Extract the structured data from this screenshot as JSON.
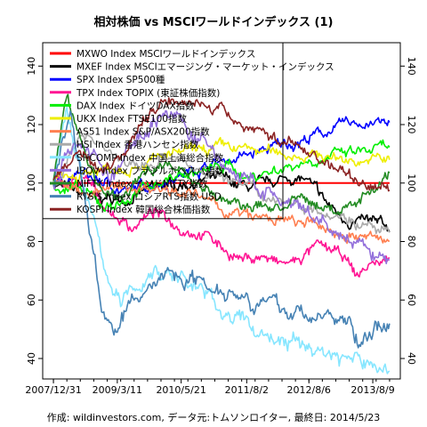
{
  "chart_data": {
    "type": "line",
    "title": "相対株価 vs MSCIワールドインデックス (1)",
    "footer": "作成: wildinvestors.com, データ元:トムソンロイター, 最終日: 2014/5/23",
    "x_tick_labels": [
      "2007/12/31",
      "2009/3/11",
      "2010/5/21",
      "2011/8/2",
      "2012/8/6",
      "2013/8/9"
    ],
    "x_range": [
      "2007/12/31",
      "2014/5/23"
    ],
    "ylim": [
      33,
      148
    ],
    "y_ticks": [
      40,
      60,
      80,
      100,
      120,
      140
    ],
    "y_tick_labels": [
      "40",
      "60",
      "80",
      "100",
      "120",
      "140"
    ],
    "legend_position": "top-left",
    "grid": false,
    "series": [
      {
        "name": "MXWO Index MSCIワールドインデックス",
        "color": "#ff0000",
        "start": 100,
        "points": [
          [
            0.78,
            100
          ],
          [
            1.0,
            100
          ]
        ]
      },
      {
        "name": "MXEF Index MSCIエマージング・マーケット・インデックス",
        "color": "#000000",
        "start": 100,
        "points": [
          [
            0.1,
            95
          ],
          [
            0.2,
            94
          ],
          [
            0.25,
            96
          ],
          [
            0.3,
            98
          ],
          [
            0.35,
            99
          ],
          [
            0.4,
            100
          ],
          [
            0.45,
            101
          ],
          [
            0.5,
            101
          ],
          [
            0.55,
            99
          ],
          [
            0.6,
            98
          ],
          [
            0.65,
            100
          ],
          [
            0.7,
            102
          ],
          [
            0.75,
            101
          ],
          [
            0.78,
            97
          ],
          [
            0.82,
            92
          ],
          [
            0.86,
            88
          ],
          [
            0.9,
            87
          ],
          [
            0.95,
            86
          ],
          [
            1.0,
            84
          ]
        ]
      },
      {
        "name": "SPX Index SP500種",
        "color": "#0000ff",
        "start": 100,
        "points": [
          [
            0.08,
            103
          ],
          [
            0.15,
            100
          ],
          [
            0.22,
            97
          ],
          [
            0.3,
            100
          ],
          [
            0.38,
            103
          ],
          [
            0.45,
            106
          ],
          [
            0.52,
            108
          ],
          [
            0.6,
            110
          ],
          [
            0.68,
            113
          ],
          [
            0.75,
            115
          ],
          [
            0.82,
            118
          ],
          [
            0.88,
            120
          ],
          [
            0.94,
            121
          ],
          [
            1.0,
            120
          ]
        ]
      },
      {
        "name": "TPX Index TOPIX (東証株価指数)",
        "color": "#ff1493",
        "start": 100,
        "points": [
          [
            0.1,
            100
          ],
          [
            0.17,
            90
          ],
          [
            0.23,
            85
          ],
          [
            0.3,
            90
          ],
          [
            0.38,
            85
          ],
          [
            0.45,
            83
          ],
          [
            0.5,
            78
          ],
          [
            0.56,
            74
          ],
          [
            0.62,
            75
          ],
          [
            0.67,
            72
          ],
          [
            0.72,
            73
          ],
          [
            0.78,
            78
          ],
          [
            0.82,
            77
          ],
          [
            0.87,
            74
          ],
          [
            0.9,
            68
          ],
          [
            0.94,
            72
          ],
          [
            1.0,
            74
          ]
        ]
      },
      {
        "name": "DAX Index ドイツDAX指数",
        "color": "#00ee00",
        "start": 100,
        "points": [
          [
            0.08,
            97
          ],
          [
            0.15,
            92
          ],
          [
            0.22,
            94
          ],
          [
            0.3,
            100
          ],
          [
            0.38,
            103
          ],
          [
            0.45,
            104
          ],
          [
            0.52,
            106
          ],
          [
            0.58,
            102
          ],
          [
            0.64,
            104
          ],
          [
            0.7,
            106
          ],
          [
            0.76,
            108
          ],
          [
            0.82,
            109
          ],
          [
            0.88,
            110
          ],
          [
            0.94,
            111
          ],
          [
            1.0,
            112
          ]
        ]
      },
      {
        "name": "UKX Index FTSE100指数",
        "color": "#eeee00",
        "start": 100,
        "points": [
          [
            0.1,
            104
          ],
          [
            0.2,
            106
          ],
          [
            0.3,
            108
          ],
          [
            0.38,
            110
          ],
          [
            0.45,
            111
          ],
          [
            0.52,
            112
          ],
          [
            0.6,
            111
          ],
          [
            0.68,
            110
          ],
          [
            0.75,
            110
          ],
          [
            0.82,
            109
          ],
          [
            0.88,
            108
          ],
          [
            0.94,
            108
          ],
          [
            1.0,
            108
          ]
        ]
      },
      {
        "name": "AS51 Index S&P/ASX200指数",
        "color": "#ff7f50",
        "start": 100,
        "points": [
          [
            0.1,
            97
          ],
          [
            0.2,
            98
          ],
          [
            0.3,
            99
          ],
          [
            0.38,
            98
          ],
          [
            0.45,
            94
          ],
          [
            0.52,
            90
          ],
          [
            0.6,
            88
          ],
          [
            0.68,
            87
          ],
          [
            0.75,
            86
          ],
          [
            0.82,
            84
          ],
          [
            0.88,
            82
          ],
          [
            0.94,
            81
          ],
          [
            1.0,
            80
          ]
        ]
      },
      {
        "name": "HSI Index 香港ハンセン指数",
        "color": "#aaaaaa",
        "start": 100,
        "points": [
          [
            0.1,
            118
          ],
          [
            0.18,
            110
          ],
          [
            0.25,
            104
          ],
          [
            0.32,
            108
          ],
          [
            0.4,
            106
          ],
          [
            0.48,
            104
          ],
          [
            0.55,
            100
          ],
          [
            0.62,
            96
          ],
          [
            0.7,
            94
          ],
          [
            0.78,
            92
          ],
          [
            0.85,
            90
          ],
          [
            0.92,
            86
          ],
          [
            1.0,
            82
          ]
        ]
      },
      {
        "name": "SHCOMP Index 中国上海総合指数",
        "color": "#87e6ff",
        "start": 100,
        "points": [
          [
            0.04,
            125
          ],
          [
            0.1,
            95
          ],
          [
            0.15,
            72
          ],
          [
            0.2,
            58
          ],
          [
            0.25,
            65
          ],
          [
            0.3,
            70
          ],
          [
            0.38,
            68
          ],
          [
            0.45,
            62
          ],
          [
            0.52,
            55
          ],
          [
            0.6,
            50
          ],
          [
            0.68,
            46
          ],
          [
            0.75,
            44
          ],
          [
            0.82,
            42
          ],
          [
            0.88,
            40
          ],
          [
            0.94,
            38
          ],
          [
            1.0,
            36
          ]
        ]
      },
      {
        "name": "IBOV Index ブラジルボベスパ指数",
        "color": "#9370db",
        "start": 100,
        "points": [
          [
            0.06,
            115
          ],
          [
            0.12,
            110
          ],
          [
            0.17,
            100
          ],
          [
            0.22,
            110
          ],
          [
            0.28,
            120
          ],
          [
            0.34,
            125
          ],
          [
            0.4,
            118
          ],
          [
            0.46,
            112
          ],
          [
            0.52,
            105
          ],
          [
            0.58,
            100
          ],
          [
            0.64,
            96
          ],
          [
            0.7,
            92
          ],
          [
            0.76,
            88
          ],
          [
            0.82,
            84
          ],
          [
            0.88,
            80
          ],
          [
            0.94,
            76
          ],
          [
            1.0,
            74
          ]
        ]
      },
      {
        "name": "NIFTY Index インドNIFTY指数",
        "color": "#228b22",
        "start": 100,
        "points": [
          [
            0.04,
            130
          ],
          [
            0.1,
            108
          ],
          [
            0.15,
            96
          ],
          [
            0.2,
            94
          ],
          [
            0.26,
            102
          ],
          [
            0.32,
            108
          ],
          [
            0.38,
            104
          ],
          [
            0.44,
            100
          ],
          [
            0.5,
            94
          ],
          [
            0.56,
            92
          ],
          [
            0.62,
            92
          ],
          [
            0.68,
            92
          ],
          [
            0.74,
            94
          ],
          [
            0.8,
            92
          ],
          [
            0.86,
            90
          ],
          [
            0.92,
            96
          ],
          [
            1.0,
            103
          ]
        ]
      },
      {
        "name": "RTSI$ Index ロシアRTS指数 USD",
        "color": "#4682b4",
        "start": 100,
        "points": [
          [
            0.05,
            125
          ],
          [
            0.1,
            90
          ],
          [
            0.14,
            60
          ],
          [
            0.18,
            48
          ],
          [
            0.23,
            58
          ],
          [
            0.28,
            64
          ],
          [
            0.34,
            70
          ],
          [
            0.4,
            68
          ],
          [
            0.46,
            66
          ],
          [
            0.52,
            64
          ],
          [
            0.58,
            62
          ],
          [
            0.64,
            58
          ],
          [
            0.7,
            56
          ],
          [
            0.76,
            55
          ],
          [
            0.82,
            54
          ],
          [
            0.88,
            52
          ],
          [
            0.92,
            44
          ],
          [
            0.96,
            50
          ],
          [
            1.0,
            54
          ]
        ]
      },
      {
        "name": "KOSPI Index 韓国総合株価指数",
        "color": "#8b2323",
        "start": 100,
        "points": [
          [
            0.08,
            112
          ],
          [
            0.14,
            105
          ],
          [
            0.2,
            110
          ],
          [
            0.26,
            120
          ],
          [
            0.32,
            128
          ],
          [
            0.38,
            130
          ],
          [
            0.44,
            127
          ],
          [
            0.5,
            124
          ],
          [
            0.56,
            120
          ],
          [
            0.62,
            118
          ],
          [
            0.68,
            114
          ],
          [
            0.74,
            112
          ],
          [
            0.8,
            108
          ],
          [
            0.86,
            104
          ],
          [
            0.92,
            100
          ],
          [
            1.0,
            98
          ]
        ]
      }
    ]
  }
}
